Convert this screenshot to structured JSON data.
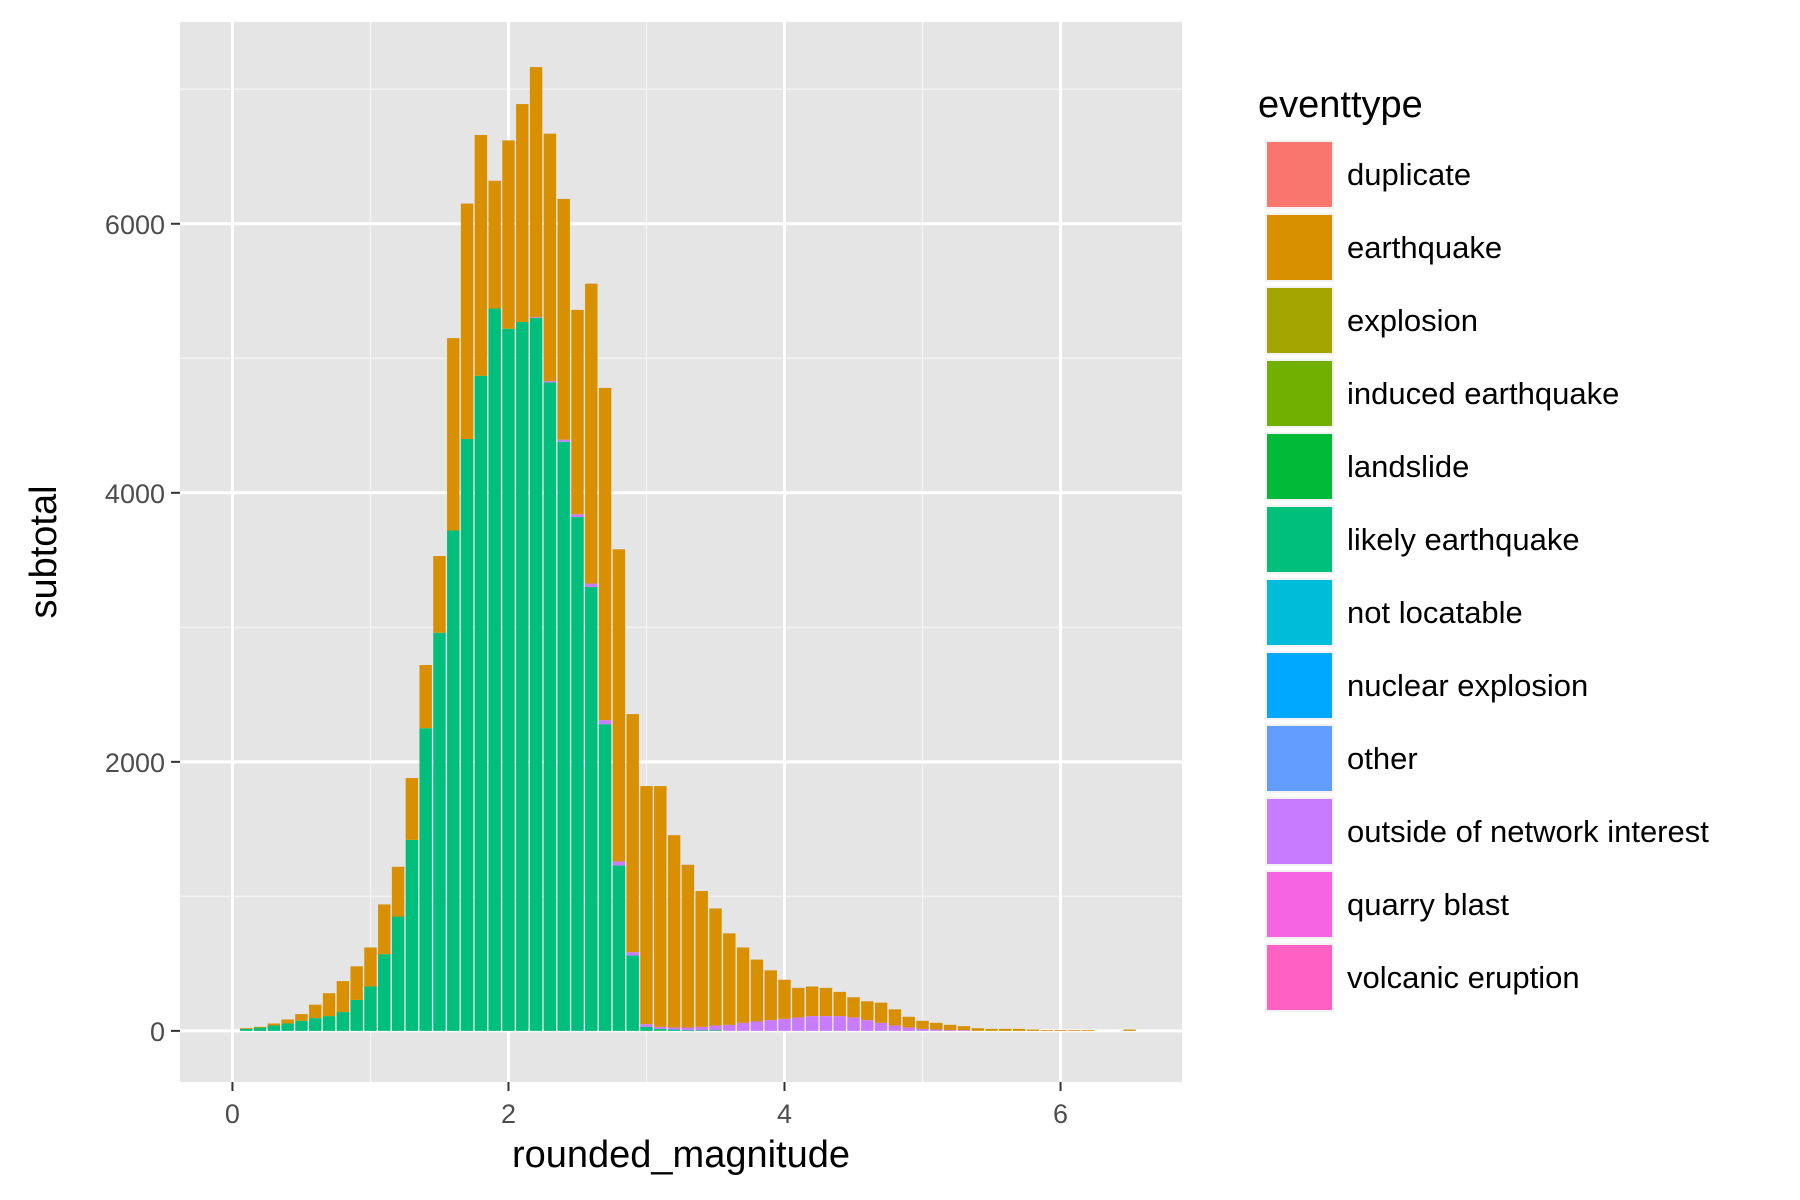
{
  "chart_data": {
    "type": "bar",
    "stacked": true,
    "xlabel": "rounded_magnitude",
    "ylabel": "subtotal",
    "xlim": [
      -0.38,
      6.88
    ],
    "ylim": [
      -380,
      7500
    ],
    "x_ticks": [
      0,
      2,
      4,
      6
    ],
    "y_ticks": [
      0,
      2000,
      4000,
      6000
    ],
    "x_tick_labels": [
      "0",
      "2",
      "4",
      "6"
    ],
    "y_tick_labels": [
      "0",
      "2000",
      "4000",
      "6000"
    ],
    "grid": true,
    "legend_position": "right",
    "legend_title": "eventtype",
    "legend": [
      {
        "label": "duplicate",
        "color": "#F8766D"
      },
      {
        "label": "earthquake",
        "color": "#D89000"
      },
      {
        "label": "explosion",
        "color": "#A3A500"
      },
      {
        "label": "induced earthquake",
        "color": "#72B000"
      },
      {
        "label": "landslide",
        "color": "#00BA38"
      },
      {
        "label": "likely earthquake",
        "color": "#00BF7D"
      },
      {
        "label": "not locatable",
        "color": "#00BCD8"
      },
      {
        "label": "nuclear explosion",
        "color": "#00A9FF"
      },
      {
        "label": "other",
        "color": "#619CFF"
      },
      {
        "label": "outside of network interest",
        "color": "#C77CFF"
      },
      {
        "label": "quarry blast",
        "color": "#F564E3"
      },
      {
        "label": "volcanic eruption",
        "color": "#FF61C3"
      }
    ],
    "bar_width": 0.09,
    "x": [
      0.1,
      0.2,
      0.3,
      0.4,
      0.5,
      0.6,
      0.7,
      0.8,
      0.9,
      1.0,
      1.1,
      1.2,
      1.3,
      1.4,
      1.5,
      1.6,
      1.7,
      1.8,
      1.9,
      2.0,
      2.1,
      2.2,
      2.3,
      2.4,
      2.5,
      2.6,
      2.7,
      2.8,
      2.9,
      3.0,
      3.1,
      3.2,
      3.3,
      3.4,
      3.5,
      3.6,
      3.7,
      3.8,
      3.9,
      4.0,
      4.1,
      4.2,
      4.3,
      4.4,
      4.5,
      4.6,
      4.7,
      4.8,
      4.9,
      5.0,
      5.1,
      5.2,
      5.3,
      5.4,
      5.5,
      5.6,
      5.7,
      5.8,
      5.9,
      6.0,
      6.1,
      6.2,
      6.3,
      6.4,
      6.5
    ],
    "series": [
      {
        "name": "likely earthquake",
        "color": "#00BF7D",
        "values": [
          15,
          25,
          40,
          55,
          75,
          95,
          110,
          140,
          230,
          330,
          570,
          850,
          1420,
          2250,
          2960,
          3720,
          4400,
          4870,
          5370,
          5220,
          5270,
          5300,
          4820,
          4380,
          3820,
          3300,
          2280,
          1230,
          560,
          30,
          15,
          10,
          5,
          5,
          5,
          0,
          0,
          0,
          0,
          0,
          0,
          0,
          0,
          0,
          0,
          0,
          0,
          0,
          0,
          0,
          0,
          0,
          0,
          0,
          0,
          0,
          0,
          0,
          0,
          0,
          0,
          0,
          0,
          0,
          0
        ]
      },
      {
        "name": "outside of network interest",
        "color": "#C77CFF",
        "values": [
          0,
          0,
          0,
          0,
          0,
          0,
          0,
          0,
          0,
          0,
          0,
          0,
          0,
          0,
          0,
          0,
          0,
          0,
          0,
          0,
          0,
          5,
          10,
          15,
          20,
          25,
          30,
          30,
          25,
          20,
          15,
          15,
          20,
          25,
          35,
          45,
          60,
          70,
          80,
          90,
          100,
          110,
          110,
          110,
          100,
          80,
          60,
          40,
          25,
          15,
          10,
          5,
          5,
          0,
          0,
          0,
          0,
          0,
          0,
          0,
          0,
          0,
          0,
          0,
          0
        ]
      },
      {
        "name": "earthquake",
        "color": "#D89000",
        "values": [
          5,
          5,
          15,
          30,
          50,
          100,
          170,
          230,
          250,
          290,
          370,
          370,
          460,
          470,
          570,
          1430,
          1750,
          1790,
          950,
          1400,
          1620,
          1860,
          1840,
          1790,
          1520,
          2230,
          2470,
          2320,
          1770,
          1770,
          1790,
          1430,
          1210,
          1010,
          870,
          680,
          560,
          460,
          370,
          290,
          220,
          220,
          210,
          180,
          150,
          140,
          150,
          120,
          80,
          60,
          50,
          40,
          30,
          20,
          15,
          15,
          15,
          10,
          5,
          5,
          5,
          5,
          0,
          0,
          10
        ]
      }
    ]
  }
}
